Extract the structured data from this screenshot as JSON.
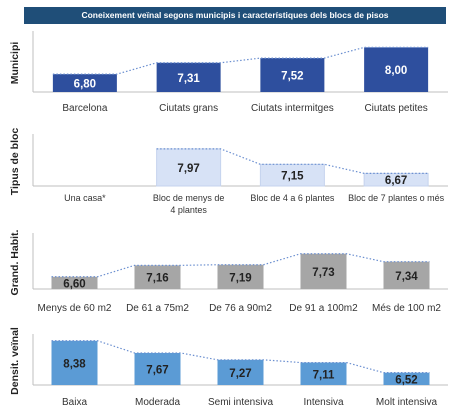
{
  "title": "Coneixement veïnal segons municipis i característiques dels blocs de pisos",
  "chart_data": [
    {
      "type": "bar",
      "ylabel": "Municipi",
      "categories": [
        "Barcelona",
        "Ciutats grans",
        "Ciutats intermitges",
        "Ciutats petites"
      ],
      "values": [
        6.8,
        7.31,
        7.52,
        8.0
      ],
      "labels": [
        "6,80",
        "7,31",
        "7,52",
        "8,00"
      ],
      "ylim": [
        0,
        10
      ],
      "color": "#2e4f9e",
      "label_color": "#ffffff",
      "trendline": true
    },
    {
      "type": "bar",
      "ylabel": "Tipus de bloc",
      "categories": [
        "Una casa*",
        "Bloc de menys de 4 plantes",
        "Bloc de 4 a 6 plantes",
        "Bloc de 7 plantes o més"
      ],
      "values": [
        null,
        7.97,
        7.15,
        6.67
      ],
      "labels": [
        "",
        "7,97",
        "7,15",
        "6,67"
      ],
      "ylim": [
        0,
        10
      ],
      "color": "#d7e2f6",
      "label_color": "#222222",
      "trendline": true
    },
    {
      "type": "bar",
      "ylabel": "Grand. Habit.",
      "categories": [
        "Menys de 60 m2",
        "De 61 a 75m2",
        "De 76 a 90m2",
        "De 91 a 100m2",
        "Més de 100 m2"
      ],
      "values": [
        6.6,
        7.16,
        7.19,
        7.73,
        7.34
      ],
      "labels": [
        "6,60",
        "7,16",
        "7,19",
        "7,73",
        "7,34"
      ],
      "ylim": [
        0,
        10
      ],
      "color": "#a6a6a6",
      "label_color": "#222222",
      "trendline": true
    },
    {
      "type": "bar",
      "ylabel": "Densit. veïnal",
      "categories": [
        "Baixa",
        "Moderada",
        "Semi intensiva",
        "Intensiva",
        "Molt intensiva"
      ],
      "values": [
        8.38,
        7.67,
        7.27,
        7.11,
        6.52
      ],
      "labels": [
        "8,38",
        "7,67",
        "7,27",
        "7,11",
        "6,52"
      ],
      "ylim": [
        0,
        10
      ],
      "color": "#5b9bd5",
      "label_color": "#222222",
      "trendline": true
    }
  ]
}
